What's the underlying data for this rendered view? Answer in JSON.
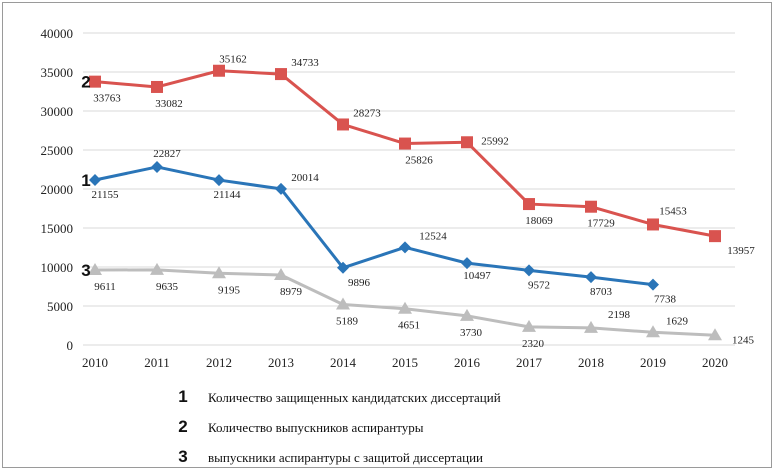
{
  "chart_data": {
    "type": "line",
    "categories": [
      "2010",
      "2011",
      "2012",
      "2013",
      "2014",
      "2015",
      "2016",
      "2017",
      "2018",
      "2019",
      "2020"
    ],
    "ylim": [
      0,
      40000
    ],
    "yticks": [
      "0",
      "5000",
      "10000",
      "15000",
      "20000",
      "25000",
      "30000",
      "35000",
      "40000"
    ],
    "grid": "horizontal",
    "series": [
      {
        "id": "1",
        "name": "Количество защищенных кандидатских диссертаций",
        "color": "#2a75b8",
        "marker": "diamond",
        "values": [
          21155,
          22827,
          21144,
          20014,
          9896,
          12524,
          10497,
          9572,
          8703,
          7738,
          null
        ],
        "labels": [
          "21155",
          "22827",
          "21144",
          "20014",
          "9896",
          "12524",
          "10497",
          "9572",
          "8703",
          "7738",
          ""
        ]
      },
      {
        "id": "2",
        "name": "Количество выпускников аспирантуры",
        "color": "#d9534f",
        "marker": "square",
        "values": [
          33763,
          33082,
          35162,
          34733,
          28273,
          25826,
          25992,
          18069,
          17729,
          15453,
          13957
        ],
        "labels": [
          "33763",
          "33082",
          "35162",
          "34733",
          "28273",
          "25826",
          "25992",
          "18069",
          "17729",
          "15453",
          "13957"
        ]
      },
      {
        "id": "3",
        "name": "выпускники аспирантуры с защитой диссертации",
        "color": "#bdbdbd",
        "marker": "triangle",
        "values": [
          9611,
          9635,
          9195,
          8979,
          5189,
          4651,
          3730,
          2320,
          2198,
          1629,
          1245
        ],
        "labels": [
          "9611",
          "9635",
          "9195",
          "8979",
          "5189",
          "4651",
          "3730",
          "2320",
          "2198",
          "1629",
          "1245"
        ]
      }
    ],
    "legend": {
      "placement": "bottom",
      "items": [
        {
          "number": "1",
          "text": "Количество защищенных кандидатских диссертаций"
        },
        {
          "number": "2",
          "text": "Количество выпускников аспирантуры"
        },
        {
          "number": "3",
          "text": "выпускники аспирантуры с защитой диссертации"
        }
      ]
    }
  }
}
